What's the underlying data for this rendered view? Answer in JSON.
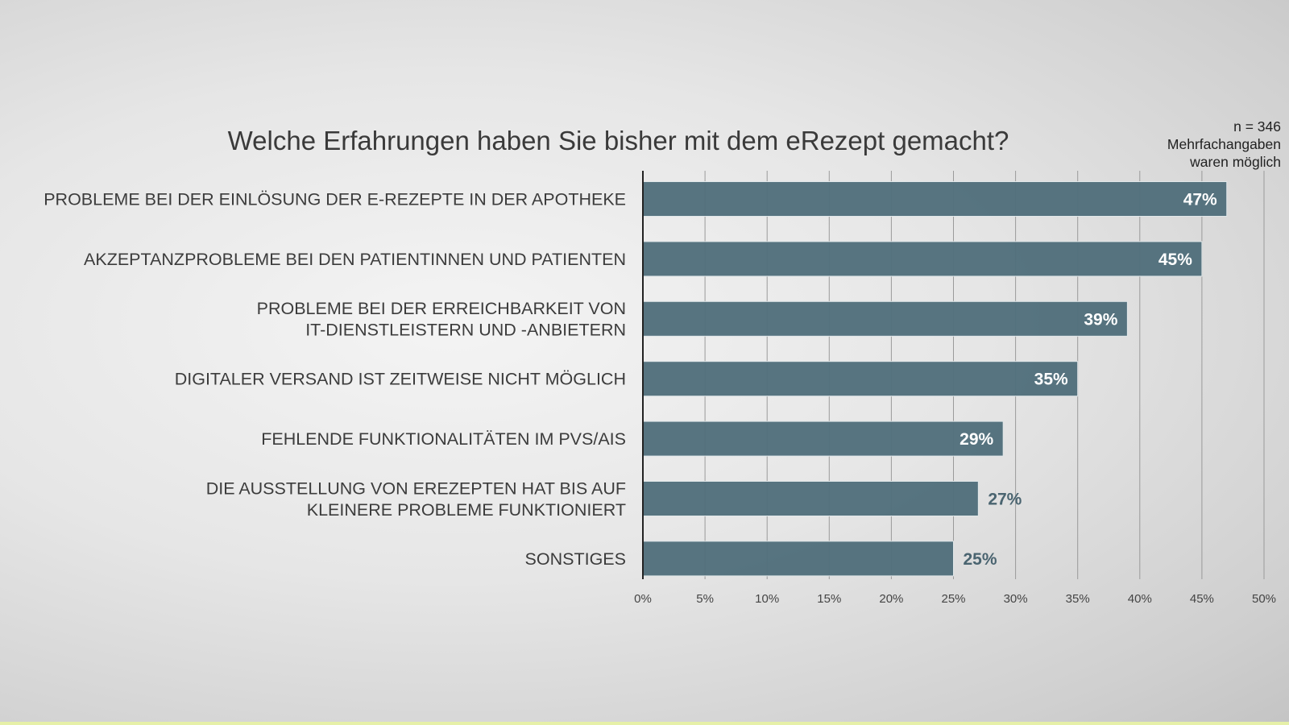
{
  "chart_data": {
    "type": "bar",
    "orientation": "horizontal",
    "title": "Welche Erfahrungen haben Sie bisher mit dem eRezept gemacht?",
    "note": [
      "n = 346",
      "Mehrfachangaben",
      "waren möglich"
    ],
    "categories": [
      [
        "PROBLEME BEI DER EINLÖSUNG DER E-REZEPTE IN DER APOTHEKE"
      ],
      [
        "AKZEPTANZPROBLEME BEI DEN PATIENTINNEN UND PATIENTEN"
      ],
      [
        "PROBLEME BEI DER ERREICHBARKEIT VON",
        "IT-DIENSTLEISTERN UND -ANBIETERN"
      ],
      [
        "DIGITALER VERSAND IST ZEITWEISE NICHT MÖGLICH"
      ],
      [
        "FEHLENDE FUNKTIONALITÄTEN IM PVS/AIS"
      ],
      [
        "DIE AUSSTELLUNG VON EREZEPTEN HAT BIS AUF",
        "KLEINERE PROBLEME FUNKTIONIERT"
      ],
      [
        "SONSTIGES"
      ]
    ],
    "values": [
      47,
      45,
      39,
      35,
      29,
      27,
      25
    ],
    "data_labels": [
      "47%",
      "45%",
      "39%",
      "35%",
      "29%",
      "27%",
      "25%"
    ],
    "xlim": [
      0,
      50
    ],
    "xticks": [
      "0%",
      "5%",
      "10%",
      "15%",
      "20%",
      "25%",
      "30%",
      "35%",
      "40%",
      "45%",
      "50%"
    ],
    "grid": true,
    "colors": {
      "bar": "#52707c",
      "label_inside": "#ffffff",
      "label_outside": "#4a6470"
    }
  }
}
